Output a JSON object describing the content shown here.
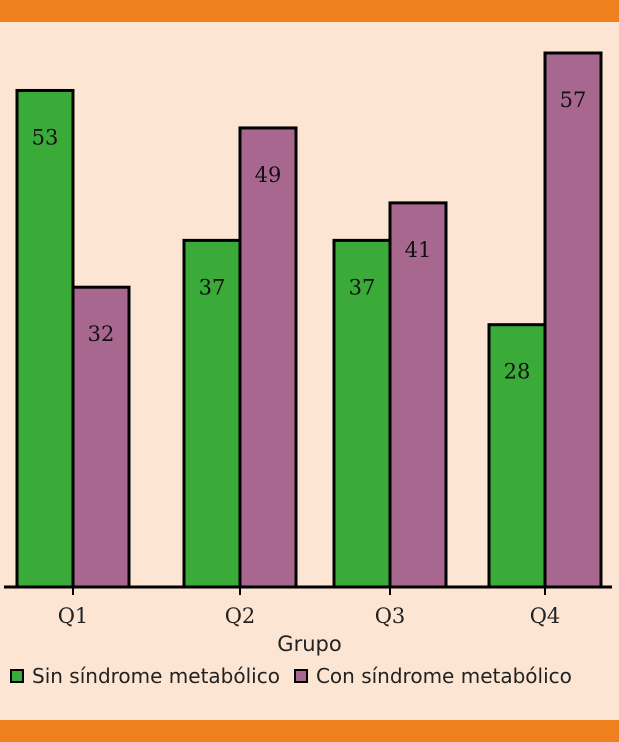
{
  "chart_data": {
    "type": "bar",
    "categories": [
      "Q1",
      "Q2",
      "Q3",
      "Q4"
    ],
    "series": [
      {
        "name": "Sin síndrome metabólico",
        "values": [
          53,
          37,
          37,
          28
        ],
        "color": "#3aab38"
      },
      {
        "name": "Con síndrome metabólico",
        "values": [
          32,
          49,
          41,
          57
        ],
        "color": "#a8678f"
      }
    ],
    "title": "",
    "xlabel": "Grupo",
    "ylabel": "",
    "ylim": [
      0,
      57
    ],
    "grid": false,
    "legend_position": "bottom"
  },
  "colors": {
    "background": "#fce6d3",
    "band": "#f07f1d",
    "outline": "#000000"
  }
}
